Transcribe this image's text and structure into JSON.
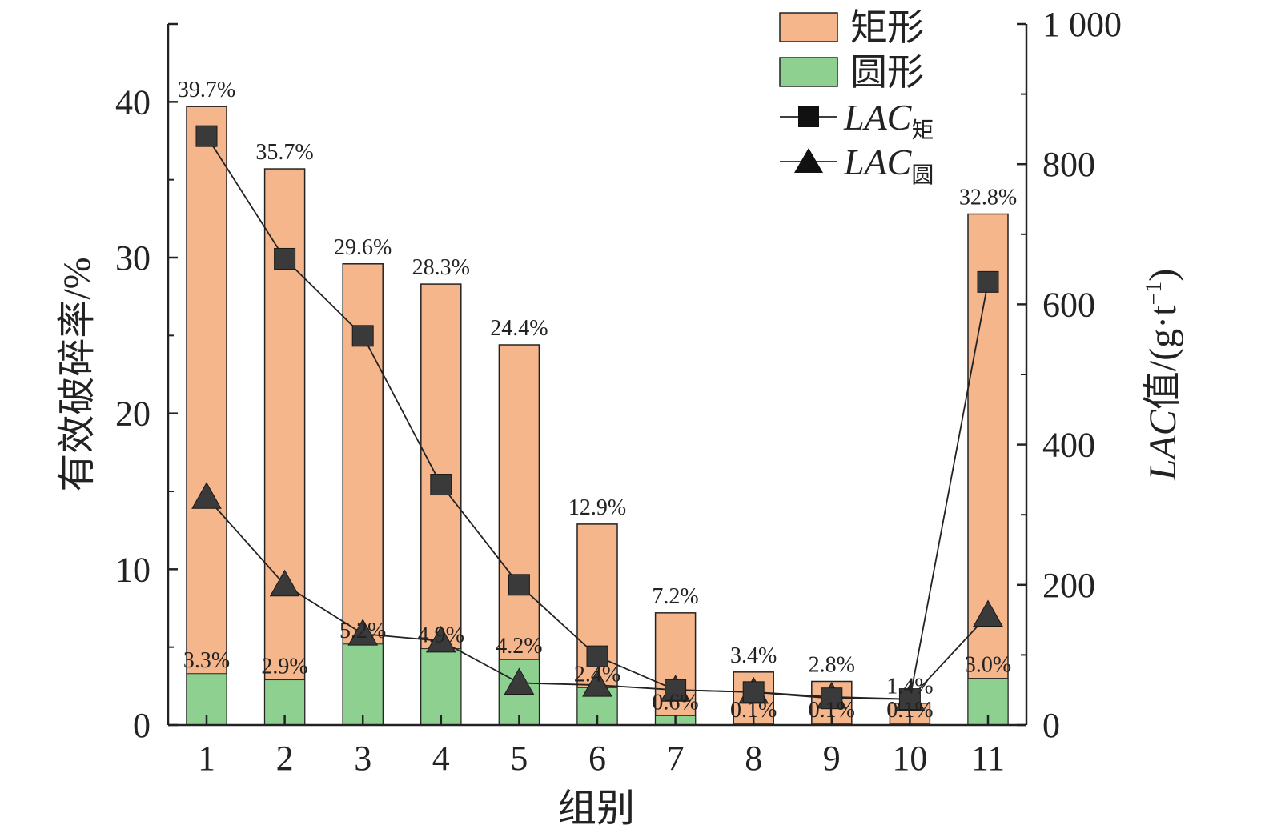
{
  "chart_data": {
    "type": "bar",
    "categories": [
      "1",
      "2",
      "3",
      "4",
      "5",
      "6",
      "7",
      "8",
      "9",
      "10",
      "11"
    ],
    "xlabel": "组别",
    "ylabel_left": "有效破碎率/%",
    "ylabel_right_main": "LAC",
    "ylabel_right_rest": "值/(g·t",
    "ylabel_right_sup": "−1",
    "ylabel_right_close": ")",
    "ylim_left": [
      0,
      45
    ],
    "yticks_left": [
      0,
      10,
      20,
      30,
      40
    ],
    "ytick_labels_left": [
      "0",
      "10",
      "20",
      "30",
      "40"
    ],
    "ylim_right": [
      0,
      1000
    ],
    "yticks_right": [
      0,
      200,
      400,
      600,
      800,
      1000
    ],
    "ytick_labels_right": [
      "0",
      "200",
      "400",
      "600",
      "800",
      "1 000"
    ],
    "grid": false,
    "legend_position": "top-right",
    "series": [
      {
        "name": "矩形",
        "kind": "bar",
        "axis": "left",
        "color": "#F5B68C",
        "values": [
          39.7,
          35.7,
          29.6,
          28.3,
          24.4,
          12.9,
          7.2,
          3.4,
          2.8,
          1.4,
          32.8
        ],
        "labels": [
          "39.7%",
          "35.7%",
          "29.6%",
          "28.3%",
          "24.4%",
          "12.9%",
          "7.2%",
          "3.4%",
          "2.8%",
          "1.4%",
          "32.8%"
        ]
      },
      {
        "name": "圆形",
        "kind": "bar",
        "axis": "left",
        "color": "#8DD08F",
        "values": [
          3.3,
          2.9,
          5.2,
          4.9,
          4.2,
          2.4,
          0.6,
          0.1,
          0.1,
          0.1,
          3.0
        ],
        "labels": [
          "3.3%",
          "2.9%",
          "5.2%",
          "4.9%",
          "4.2%",
          "2.4%",
          "0.6%",
          "0.1%",
          "0.1%",
          "0.1%",
          "3.0%"
        ]
      },
      {
        "name": "LAC",
        "subscript": "矩",
        "kind": "line",
        "marker": "square",
        "axis": "right",
        "color": "#3A3A3A",
        "values": [
          840,
          665,
          555,
          343,
          200,
          98,
          50,
          47,
          38,
          37,
          632
        ]
      },
      {
        "name": "LAC",
        "subscript": "圆",
        "kind": "line",
        "marker": "triangle",
        "axis": "right",
        "color": "#3A3A3A",
        "values": [
          325,
          200,
          130,
          120,
          60,
          57,
          50,
          47,
          40,
          37,
          157
        ]
      }
    ]
  }
}
